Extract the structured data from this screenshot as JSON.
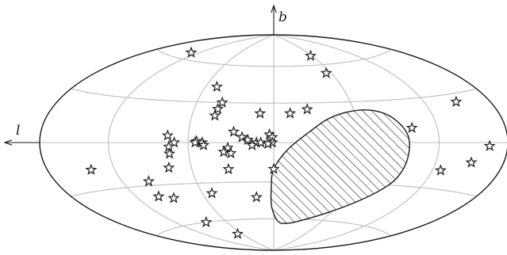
{
  "chart_data": {
    "type": "scatter",
    "projection": "hammer-aitoff",
    "xlabel": "l",
    "ylabel": "b",
    "xlim": [
      -180,
      180
    ],
    "ylim": [
      -90,
      90
    ],
    "grid": true,
    "graticule": {
      "meridians_deg": [
        -120,
        -60,
        0,
        60,
        120
      ],
      "parallels_deg": [
        -60,
        -30,
        0,
        30,
        60
      ]
    },
    "colors": {
      "outline": "#1a1a1a",
      "grid": "#bdbdbd",
      "marker_fill": "#ffffff"
    },
    "marker": "star-outline",
    "series": [
      {
        "values": [
          {
            "l": 130,
            "b": 65
          },
          {
            "l": 50,
            "b": 42
          },
          {
            "l": 40,
            "b": 30
          },
          {
            "l": 42,
            "b": 25
          },
          {
            "l": 43,
            "b": 20
          },
          {
            "l": 10,
            "b": 22
          },
          {
            "l": -12,
            "b": 22
          },
          {
            "l": -25,
            "b": 25
          },
          {
            "l": 75,
            "b": 5
          },
          {
            "l": 70,
            "b": 0
          },
          {
            "l": 74,
            "b": -3
          },
          {
            "l": 74,
            "b": -8
          },
          {
            "l": 77,
            "b": -18
          },
          {
            "l": 54,
            "b": 1
          },
          {
            "l": 55,
            "b": 0
          },
          {
            "l": 50,
            "b": 0
          },
          {
            "l": 49,
            "b": -2
          },
          {
            "l": 28,
            "b": 8
          },
          {
            "l": 22,
            "b": 4
          },
          {
            "l": 18,
            "b": 2
          },
          {
            "l": 12,
            "b": 0
          },
          {
            "l": 9,
            "b": 0
          },
          {
            "l": 3,
            "b": 6
          },
          {
            "l": 1,
            "b": 4
          },
          {
            "l": 32,
            "b": -4
          },
          {
            "l": 35,
            "b": -7
          },
          {
            "l": 30,
            "b": -8
          },
          {
            "l": 1,
            "b": 0
          },
          {
            "l": 4,
            "b": -1
          },
          {
            "l": 15,
            "b": -2
          },
          {
            "l": 33,
            "b": -20
          },
          {
            "l": 0,
            "b": -20
          },
          {
            "l": 140,
            "b": -17
          },
          {
            "l": 98,
            "b": -27
          },
          {
            "l": 100,
            "b": -38
          },
          {
            "l": 88,
            "b": -40
          },
          {
            "l": 52,
            "b": -38
          },
          {
            "l": 15,
            "b": -42
          },
          {
            "l": 85,
            "b": -60
          },
          {
            "l": 68,
            "b": -72
          },
          {
            "l": -58,
            "b": 68
          },
          {
            "l": -55,
            "b": 53
          },
          {
            "l": -148,
            "b": 25
          },
          {
            "l": -100,
            "b": 10
          },
          {
            "l": -163,
            "b": -2
          },
          {
            "l": -150,
            "b": -12
          },
          {
            "l": -127,
            "b": -18
          }
        ]
      }
    ],
    "region": {
      "style": "hatched",
      "boundary": [
        {
          "l": 0,
          "b": -20
        },
        {
          "l": -10,
          "b": -5
        },
        {
          "l": -25,
          "b": 8
        },
        {
          "l": -40,
          "b": 18
        },
        {
          "l": -58,
          "b": 23
        },
        {
          "l": -75,
          "b": 23
        },
        {
          "l": -88,
          "b": 17
        },
        {
          "l": -96,
          "b": 5
        },
        {
          "l": -97,
          "b": -10
        },
        {
          "l": -95,
          "b": -24
        },
        {
          "l": -88,
          "b": -34
        },
        {
          "l": -75,
          "b": -44
        },
        {
          "l": -58,
          "b": -53
        },
        {
          "l": -38,
          "b": -60
        },
        {
          "l": -18,
          "b": -64
        },
        {
          "l": -5,
          "b": -62
        },
        {
          "l": 2,
          "b": -50
        },
        {
          "l": 2,
          "b": -35
        }
      ]
    }
  }
}
